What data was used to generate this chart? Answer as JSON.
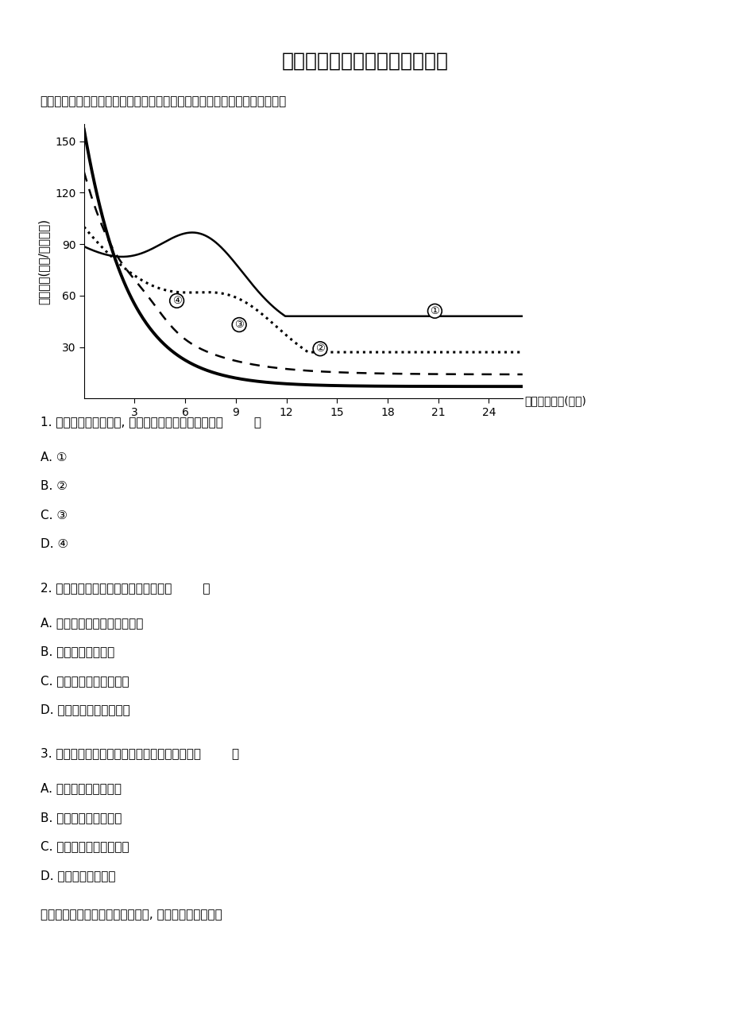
{
  "title": "高三最后冲刺地理单科模拟卷一",
  "subtitle": "下图是「某城市不同时期人口密度与距市中心距离关系图」，读图回答下题。",
  "chart_ylabel": "人口密度(千人/平方千米)",
  "chart_xlabel": "距市中心距离(千米)",
  "yticks": [
    30,
    60,
    90,
    120,
    150
  ],
  "xticks": [
    3,
    6,
    9,
    12,
    15,
    18,
    21,
    24
  ],
  "ylim": [
    0,
    160
  ],
  "xlim": [
    0,
    26
  ],
  "questions": [
    "1. 按城市化的一般进程, 时间最晚的人口分布曲线是（        ）",
    "A. ①",
    "B. ②",
    "C. ③",
    "D. ④",
    "2. 该城市在发展过程中出现的现象是（        ）",
    "A. 城市人口逐渐向市中心集聚",
    "B. 逆城市化趋势增强",
    "C. 城市用地规模逐渐缩小",
    "D. 市区交通流量明显减小",
    "3. 导致城市中心区人口密度变化的主要原因是（        ）",
    "A. 中心区城市设施完善",
    "B. 中心区环境质量恶化",
    "C. 近郊区农业的迅速发展",
    "D. 中心区就业机会多",
    "读世界汽车产业四次大转移示意图, 读图回答下面小题。"
  ],
  "background_color": "#ffffff"
}
